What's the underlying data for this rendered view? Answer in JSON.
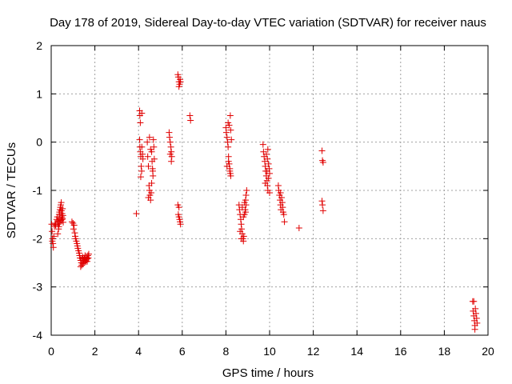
{
  "chart_data": {
    "type": "scatter",
    "title": "Day 178 of 2019, Sidereal Day-to-day VTEC variation (SDTVAR) for receiver naus",
    "xlabel": "GPS time / hours",
    "ylabel": "SDTVAR / TECUs",
    "xlim": [
      0,
      20
    ],
    "ylim": [
      -4,
      2
    ],
    "xticks": [
      0,
      2,
      4,
      6,
      8,
      10,
      12,
      14,
      16,
      18,
      20
    ],
    "xtick_labels": [
      "0",
      "2",
      "4",
      "6",
      "8",
      "10",
      "12",
      "14",
      "16",
      "18",
      "20"
    ],
    "yticks": [
      -4,
      -3,
      -2,
      -1,
      0,
      1,
      2
    ],
    "ytick_labels": [
      "-4",
      "-3",
      "-2",
      "-1",
      "0",
      "1",
      "2"
    ],
    "grid": true,
    "marker": "+",
    "color": "#e00000",
    "series": [
      {
        "name": "naus",
        "points": [
          [
            0.02,
            -1.7
          ],
          [
            0.04,
            -1.85
          ],
          [
            0.06,
            -2.0
          ],
          [
            0.08,
            -2.1
          ],
          [
            0.1,
            -2.18
          ],
          [
            0.05,
            -2.05
          ],
          [
            0.12,
            -1.95
          ],
          [
            0.15,
            -1.75
          ],
          [
            0.18,
            -1.68
          ],
          [
            0.2,
            -1.72
          ],
          [
            0.25,
            -1.6
          ],
          [
            0.28,
            -1.55
          ],
          [
            0.3,
            -1.65
          ],
          [
            0.32,
            -1.7
          ],
          [
            0.34,
            -1.8
          ],
          [
            0.36,
            -1.5
          ],
          [
            0.38,
            -1.45
          ],
          [
            0.4,
            -1.4
          ],
          [
            0.42,
            -1.35
          ],
          [
            0.44,
            -1.3
          ],
          [
            0.46,
            -1.25
          ],
          [
            0.48,
            -1.55
          ],
          [
            0.5,
            -1.6
          ],
          [
            0.52,
            -1.58
          ],
          [
            0.54,
            -1.52
          ],
          [
            0.3,
            -1.9
          ],
          [
            0.35,
            -1.75
          ],
          [
            0.45,
            -1.62
          ],
          [
            0.5,
            -1.48
          ],
          [
            0.55,
            -1.66
          ],
          [
            0.4,
            -1.58
          ],
          [
            0.33,
            -1.63
          ],
          [
            0.47,
            -1.42
          ],
          [
            0.38,
            -1.68
          ],
          [
            0.52,
            -1.38
          ],
          [
            0.95,
            -1.65
          ],
          [
            1.0,
            -1.68
          ],
          [
            1.05,
            -1.72
          ],
          [
            1.02,
            -1.8
          ],
          [
            1.08,
            -1.88
          ],
          [
            1.1,
            -1.95
          ],
          [
            1.12,
            -2.0
          ],
          [
            1.15,
            -2.05
          ],
          [
            1.18,
            -2.1
          ],
          [
            1.2,
            -2.15
          ],
          [
            1.22,
            -2.2
          ],
          [
            1.25,
            -2.25
          ],
          [
            1.28,
            -2.3
          ],
          [
            1.3,
            -2.35
          ],
          [
            1.32,
            -2.4
          ],
          [
            1.35,
            -2.45
          ],
          [
            1.38,
            -2.5
          ],
          [
            1.4,
            -2.55
          ],
          [
            1.42,
            -2.42
          ],
          [
            1.45,
            -2.38
          ],
          [
            1.48,
            -2.45
          ],
          [
            1.5,
            -2.5
          ],
          [
            1.52,
            -2.4
          ],
          [
            1.55,
            -2.35
          ],
          [
            1.58,
            -2.48
          ],
          [
            1.6,
            -2.44
          ],
          [
            1.62,
            -2.38
          ],
          [
            1.65,
            -2.42
          ],
          [
            1.68,
            -2.35
          ],
          [
            1.7,
            -2.4
          ],
          [
            1.35,
            -2.58
          ],
          [
            1.45,
            -2.52
          ],
          [
            1.55,
            -2.46
          ],
          [
            1.65,
            -2.47
          ],
          [
            1.72,
            -2.32
          ],
          [
            3.9,
            -1.48
          ],
          [
            4.05,
            0.65
          ],
          [
            4.06,
            0.55
          ],
          [
            4.08,
            0.4
          ],
          [
            4.05,
            0.05
          ],
          [
            4.06,
            -0.1
          ],
          [
            4.08,
            -0.2
          ],
          [
            4.1,
            -0.3
          ],
          [
            4.12,
            -0.5
          ],
          [
            4.14,
            -0.6
          ],
          [
            4.1,
            -0.72
          ],
          [
            4.15,
            -0.1
          ],
          [
            4.18,
            -0.25
          ],
          [
            4.2,
            -0.35
          ],
          [
            4.15,
            0.6
          ],
          [
            4.4,
            0.0
          ],
          [
            4.42,
            -0.3
          ],
          [
            4.45,
            -0.5
          ],
          [
            4.48,
            -0.9
          ],
          [
            4.5,
            -1.0
          ],
          [
            4.52,
            -1.1
          ],
          [
            4.55,
            -1.2
          ],
          [
            4.58,
            -1.05
          ],
          [
            4.6,
            -0.2
          ],
          [
            4.62,
            -0.4
          ],
          [
            4.64,
            -0.55
          ],
          [
            4.66,
            -0.7
          ],
          [
            4.5,
            0.1
          ],
          [
            4.55,
            -0.15
          ],
          [
            4.68,
            0.05
          ],
          [
            4.7,
            -0.1
          ],
          [
            4.72,
            -0.35
          ],
          [
            4.65,
            -0.6
          ],
          [
            4.45,
            -1.15
          ],
          [
            4.6,
            -0.85
          ],
          [
            5.4,
            0.2
          ],
          [
            5.42,
            0.1
          ],
          [
            5.45,
            0.0
          ],
          [
            5.48,
            -0.1
          ],
          [
            5.5,
            -0.2
          ],
          [
            5.52,
            -0.3
          ],
          [
            5.5,
            -0.4
          ],
          [
            5.45,
            -0.25
          ],
          [
            5.8,
            1.4
          ],
          [
            5.82,
            1.35
          ],
          [
            5.85,
            1.25
          ],
          [
            5.88,
            1.2
          ],
          [
            5.9,
            1.3
          ],
          [
            5.85,
            1.15
          ],
          [
            5.92,
            1.25
          ],
          [
            5.8,
            -1.3
          ],
          [
            5.82,
            -1.5
          ],
          [
            5.85,
            -1.55
          ],
          [
            5.88,
            -1.6
          ],
          [
            5.9,
            -1.65
          ],
          [
            5.92,
            -1.7
          ],
          [
            5.85,
            -1.35
          ],
          [
            6.35,
            0.55
          ],
          [
            6.38,
            0.45
          ],
          [
            8.0,
            0.3
          ],
          [
            8.02,
            0.2
          ],
          [
            8.05,
            0.1
          ],
          [
            8.08,
            0.0
          ],
          [
            8.1,
            -0.1
          ],
          [
            8.12,
            -0.3
          ],
          [
            8.15,
            -0.45
          ],
          [
            8.18,
            -0.55
          ],
          [
            8.2,
            -0.65
          ],
          [
            8.05,
            -0.5
          ],
          [
            8.1,
            0.4
          ],
          [
            8.15,
            0.35
          ],
          [
            8.2,
            0.55
          ],
          [
            8.22,
            0.25
          ],
          [
            8.25,
            0.05
          ],
          [
            8.18,
            -0.6
          ],
          [
            8.22,
            -0.7
          ],
          [
            8.12,
            -0.4
          ],
          [
            8.6,
            -1.3
          ],
          [
            8.62,
            -1.4
          ],
          [
            8.65,
            -1.5
          ],
          [
            8.68,
            -1.6
          ],
          [
            8.7,
            -1.7
          ],
          [
            8.72,
            -1.8
          ],
          [
            8.75,
            -1.9
          ],
          [
            8.78,
            -2.0
          ],
          [
            8.8,
            -2.05
          ],
          [
            8.82,
            -1.95
          ],
          [
            8.85,
            -1.5
          ],
          [
            8.88,
            -1.4
          ],
          [
            8.9,
            -1.2
          ],
          [
            8.92,
            -1.1
          ],
          [
            8.95,
            -1.0
          ],
          [
            8.65,
            -1.85
          ],
          [
            8.7,
            -2.0
          ],
          [
            8.75,
            -1.35
          ],
          [
            8.8,
            -1.55
          ],
          [
            8.85,
            -1.25
          ],
          [
            8.9,
            -1.45
          ],
          [
            8.92,
            -1.3
          ],
          [
            9.7,
            -0.05
          ],
          [
            9.72,
            -0.2
          ],
          [
            9.75,
            -0.3
          ],
          [
            9.78,
            -0.4
          ],
          [
            9.8,
            -0.5
          ],
          [
            9.82,
            -0.6
          ],
          [
            9.85,
            -0.7
          ],
          [
            9.88,
            -0.8
          ],
          [
            9.9,
            -0.9
          ],
          [
            9.92,
            -1.0
          ],
          [
            9.95,
            -0.45
          ],
          [
            9.98,
            -0.55
          ],
          [
            10.0,
            -0.65
          ],
          [
            9.85,
            -0.25
          ],
          [
            9.9,
            -0.35
          ],
          [
            9.95,
            -0.75
          ],
          [
            9.8,
            -0.85
          ],
          [
            10.0,
            -1.05
          ],
          [
            9.92,
            -0.15
          ],
          [
            9.88,
            -0.6
          ],
          [
            10.4,
            -0.9
          ],
          [
            10.42,
            -1.0
          ],
          [
            10.45,
            -1.1
          ],
          [
            10.48,
            -1.2
          ],
          [
            10.5,
            -1.3
          ],
          [
            10.52,
            -1.4
          ],
          [
            10.55,
            -1.15
          ],
          [
            10.58,
            -1.25
          ],
          [
            10.6,
            -1.35
          ],
          [
            10.62,
            -1.45
          ],
          [
            10.65,
            -1.5
          ],
          [
            10.68,
            -1.65
          ],
          [
            10.5,
            -1.05
          ],
          [
            11.35,
            -1.78
          ],
          [
            12.4,
            -0.18
          ],
          [
            12.42,
            -0.38
          ],
          [
            12.45,
            -0.42
          ],
          [
            12.4,
            -1.22
          ],
          [
            12.42,
            -1.3
          ],
          [
            12.45,
            -1.42
          ],
          [
            19.3,
            -3.3
          ],
          [
            19.32,
            -3.5
          ],
          [
            19.35,
            -3.6
          ],
          [
            19.38,
            -3.7
          ],
          [
            19.4,
            -3.8
          ],
          [
            19.42,
            -3.45
          ],
          [
            19.45,
            -3.55
          ],
          [
            19.48,
            -3.65
          ],
          [
            19.35,
            -3.3
          ],
          [
            19.4,
            -3.88
          ],
          [
            19.5,
            -3.75
          ]
        ]
      }
    ]
  }
}
